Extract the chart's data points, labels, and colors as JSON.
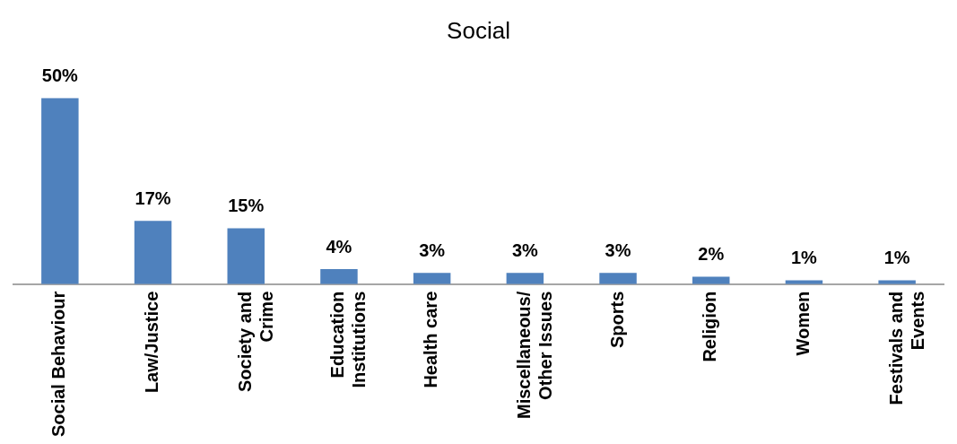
{
  "chart_data": {
    "type": "bar",
    "title": "Social",
    "categories": [
      "Social Behaviour",
      "Law/Justice",
      "Society and\nCrime",
      "Education\nInstitutions",
      "Health care",
      "Miscellaneous/\nOther Issues",
      "Sports",
      "Religion",
      "Women",
      "Festivals and\nEvents"
    ],
    "values": [
      50,
      17,
      15,
      4,
      3,
      3,
      3,
      2,
      1,
      1
    ],
    "value_labels": [
      "50%",
      "17%",
      "15%",
      "4%",
      "3%",
      "3%",
      "3%",
      "2%",
      "1%",
      "1%"
    ],
    "color": "#4f81bd",
    "grid": false,
    "legend": false,
    "tick_labels": "x"
  }
}
